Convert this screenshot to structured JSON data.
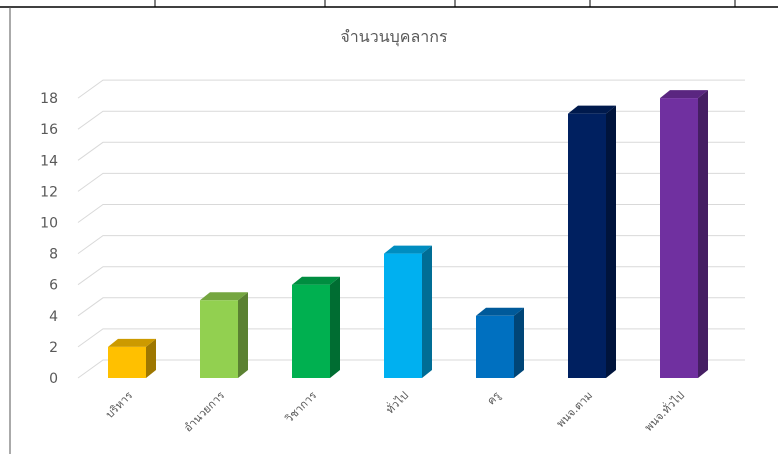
{
  "chart_data": {
    "type": "bar",
    "style": "3d-column",
    "title": "จำนวนบุคลากร",
    "xlabel": "",
    "ylabel": "",
    "categories": [
      "บริหาร",
      "อำนวยการ",
      "วิชาการ",
      "ทั่วไป",
      "ครู",
      "พนจ.ตาม",
      "พนจ.ทั่วไป"
    ],
    "values": [
      2,
      5,
      6,
      8,
      4,
      17,
      18
    ],
    "colors": [
      "#FFC000",
      "#92D050",
      "#00B050",
      "#00B0F0",
      "#0070C0",
      "#002060",
      "#7030A0"
    ],
    "ylim": [
      0,
      18
    ],
    "yticks": [
      0,
      2,
      4,
      6,
      8,
      10,
      12,
      14,
      16,
      18
    ],
    "grid": true,
    "legend": "none"
  }
}
